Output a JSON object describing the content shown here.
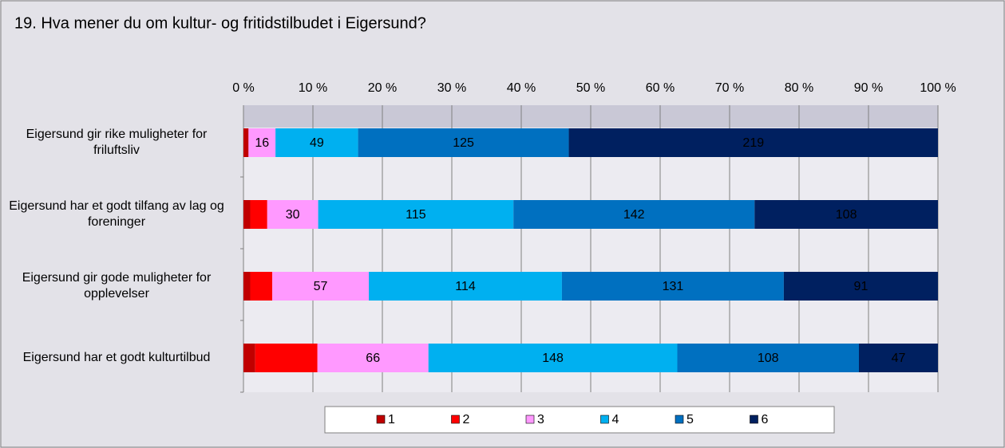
{
  "chart_data": {
    "type": "stacked_percent_barh",
    "title": "19. Hva mener du om kultur- og fritidstilbudet i Eigersund?",
    "categories": [
      "Eigersund gir rike muligheter for friluftsliv",
      "Eigersund har et godt tilfang av lag og foreninger",
      "Eigersund gir gode muligheter for opplevelser",
      "Eigersund har et godt kulturtilbud"
    ],
    "series": [
      {
        "name": "1",
        "color": "#c00000",
        "show_labels": false,
        "values": [
          3,
          4,
          4,
          7
        ]
      },
      {
        "name": "2",
        "color": "#ff0000",
        "show_labels": false,
        "values": [
          0,
          10,
          13,
          37
        ]
      },
      {
        "name": "3",
        "color": "#ff99ff",
        "show_labels": true,
        "values": [
          16,
          30,
          57,
          66
        ]
      },
      {
        "name": "4",
        "color": "#00b0f0",
        "show_labels": true,
        "values": [
          49,
          115,
          114,
          148
        ]
      },
      {
        "name": "5",
        "color": "#0070c0",
        "show_labels": true,
        "values": [
          125,
          142,
          131,
          108
        ]
      },
      {
        "name": "6",
        "color": "#002060",
        "show_labels": true,
        "values": [
          219,
          108,
          91,
          47
        ]
      }
    ],
    "xlim": [
      0,
      100
    ],
    "xticks": [
      {
        "value": 0,
        "label": "0 %"
      },
      {
        "value": 10,
        "label": "10 %"
      },
      {
        "value": 20,
        "label": "20 %"
      },
      {
        "value": 30,
        "label": "30 %"
      },
      {
        "value": 40,
        "label": "40 %"
      },
      {
        "value": 50,
        "label": "50 %"
      },
      {
        "value": 60,
        "label": "60 %"
      },
      {
        "value": 70,
        "label": "70 %"
      },
      {
        "value": 80,
        "label": "80 %"
      },
      {
        "value": 90,
        "label": "90 %"
      },
      {
        "value": 100,
        "label": "100 %"
      }
    ],
    "grid": true
  }
}
